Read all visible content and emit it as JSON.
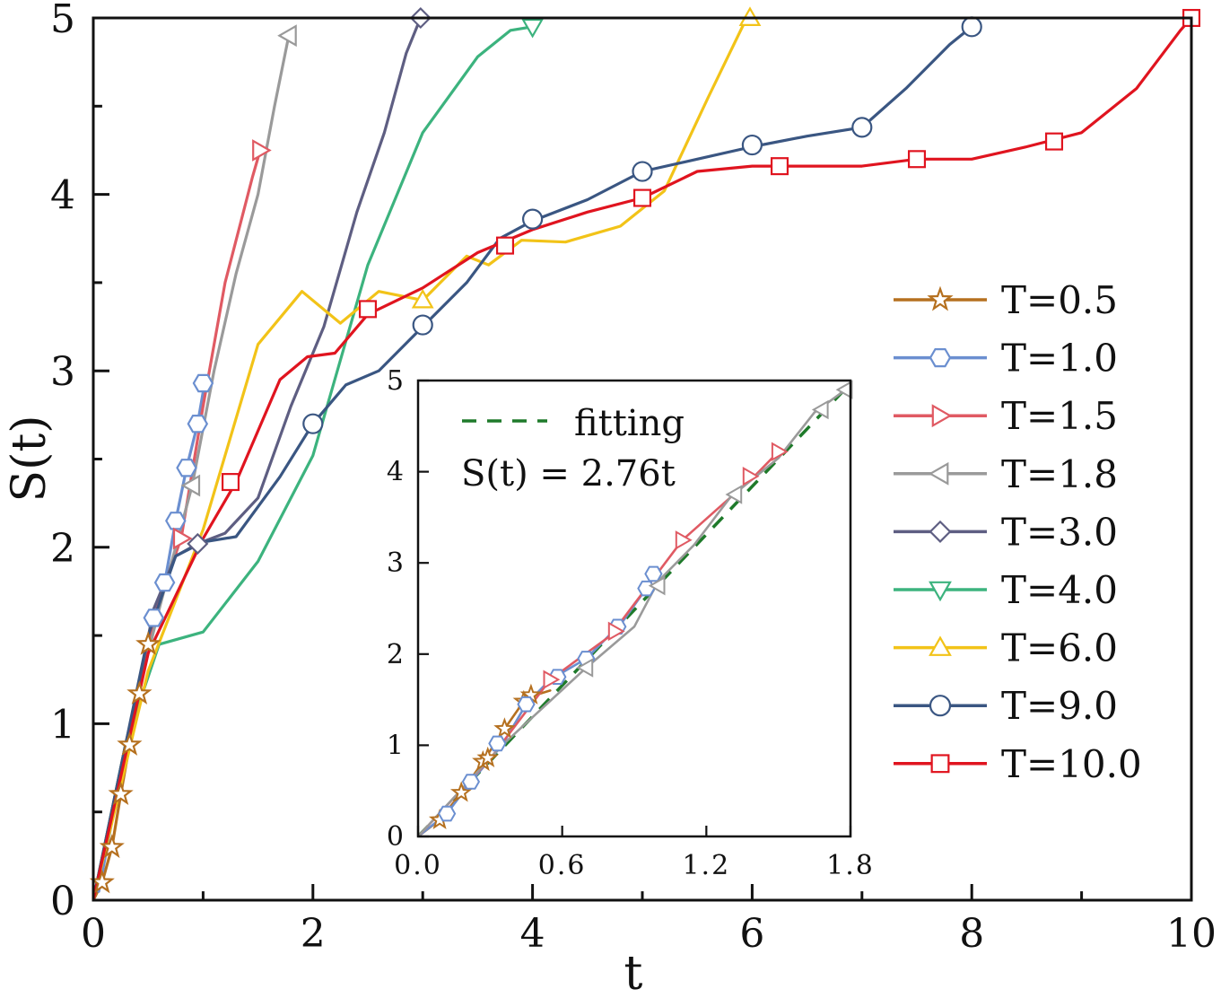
{
  "chart_data": [
    {
      "type": "line",
      "role": "main",
      "title": "",
      "xlabel": "t",
      "ylabel": "S(t)",
      "xlim": [
        0,
        10
      ],
      "ylim": [
        0,
        5
      ],
      "xticks": [
        0,
        2,
        4,
        6,
        8,
        10
      ],
      "yticks": [
        0,
        1,
        2,
        3,
        4,
        5
      ],
      "xtick_labels": [
        "0",
        "2",
        "4",
        "6",
        "8",
        "10"
      ],
      "ytick_labels": [
        "0",
        "1",
        "2",
        "3",
        "4",
        "5"
      ],
      "grid": false,
      "legend_position": "right",
      "series": [
        {
          "name": "T=0.5",
          "color": "#b5701f",
          "marker": "star",
          "x": [
            0,
            0.08,
            0.17,
            0.25,
            0.33,
            0.42,
            0.5,
            0.55
          ],
          "y": [
            0,
            0.1,
            0.3,
            0.6,
            0.88,
            1.17,
            1.45,
            1.55
          ],
          "marker_x": [
            0.08,
            0.17,
            0.25,
            0.33,
            0.42,
            0.5
          ],
          "marker_y": [
            0.1,
            0.3,
            0.6,
            0.88,
            1.17,
            1.45
          ]
        },
        {
          "name": "T=1.0",
          "color": "#6b8fd0",
          "marker": "hexagon",
          "x": [
            0.05,
            0.2,
            0.4,
            0.55,
            0.65,
            0.75,
            0.85,
            0.95,
            1.02
          ],
          "y": [
            0.05,
            0.55,
            1.15,
            1.6,
            1.8,
            2.15,
            2.45,
            2.7,
            2.95
          ],
          "marker_x": [
            0.55,
            0.65,
            0.75,
            0.85,
            0.95,
            1.0
          ],
          "marker_y": [
            1.6,
            1.8,
            2.15,
            2.45,
            2.7,
            2.93
          ]
        },
        {
          "name": "T=1.5",
          "color": "#e05a63",
          "marker": "triangle-right",
          "x": [
            0,
            0.3,
            0.6,
            0.8,
            1.0,
            1.2,
            1.45,
            1.52
          ],
          "y": [
            0,
            0.9,
            1.7,
            2.05,
            2.8,
            3.5,
            4.1,
            4.25
          ],
          "marker_x": [
            0.8,
            1.52
          ],
          "marker_y": [
            2.05,
            4.25
          ]
        },
        {
          "name": "T=1.8",
          "color": "#9a9a9a",
          "marker": "triangle-left",
          "x": [
            0,
            0.3,
            0.6,
            0.9,
            1.1,
            1.3,
            1.5,
            1.65,
            1.78
          ],
          "y": [
            0,
            0.9,
            1.65,
            2.35,
            3.0,
            3.55,
            4.0,
            4.5,
            4.9
          ],
          "marker_x": [
            0.9,
            1.78
          ],
          "marker_y": [
            2.35,
            4.9
          ]
        },
        {
          "name": "T=3.0",
          "color": "#5e5e82",
          "marker": "diamond",
          "x": [
            0,
            0.3,
            0.55,
            0.75,
            0.95,
            1.2,
            1.5,
            1.8,
            2.1,
            2.4,
            2.65,
            2.85,
            2.98
          ],
          "y": [
            0,
            0.85,
            1.65,
            1.95,
            2.02,
            2.08,
            2.28,
            2.8,
            3.25,
            3.9,
            4.35,
            4.8,
            5.0
          ],
          "marker_x": [
            0.95,
            2.98
          ],
          "marker_y": [
            2.02,
            5.0
          ]
        },
        {
          "name": "T=4.0",
          "color": "#3cb37e",
          "marker": "triangle-down",
          "x": [
            0,
            0.3,
            0.6,
            1.0,
            1.5,
            2.0,
            2.5,
            3.0,
            3.5,
            3.8,
            4.0
          ],
          "y": [
            0,
            0.9,
            1.45,
            1.52,
            1.92,
            2.52,
            3.6,
            4.35,
            4.78,
            4.93,
            4.95
          ],
          "marker_x": [
            4.0
          ],
          "marker_y": [
            4.95
          ]
        },
        {
          "name": "T=6.0",
          "color": "#f2c318",
          "marker": "triangle-up",
          "x": [
            0,
            0.5,
            1.0,
            1.5,
            1.9,
            2.25,
            2.6,
            3.0,
            3.4,
            3.6,
            3.9,
            4.3,
            4.8,
            5.2,
            5.6,
            5.95
          ],
          "y": [
            0,
            1.3,
            2.1,
            3.15,
            3.45,
            3.27,
            3.45,
            3.4,
            3.65,
            3.6,
            3.74,
            3.73,
            3.82,
            4.02,
            4.55,
            5.0
          ],
          "marker_x": [
            3.0,
            5.98
          ],
          "marker_y": [
            3.4,
            5.0
          ]
        },
        {
          "name": "T=9.0",
          "color": "#3a5682",
          "marker": "circle",
          "x": [
            0,
            0.5,
            0.75,
            1.0,
            1.3,
            1.7,
            2.0,
            2.3,
            2.6,
            3.0,
            3.4,
            3.7,
            4.0,
            4.5,
            5.0,
            5.5,
            6.0,
            6.5,
            7.0,
            7.4,
            7.8,
            8.0
          ],
          "y": [
            0,
            1.5,
            1.95,
            2.03,
            2.06,
            2.4,
            2.7,
            2.92,
            3.0,
            3.25,
            3.5,
            3.75,
            3.85,
            3.97,
            4.13,
            4.2,
            4.27,
            4.33,
            4.38,
            4.6,
            4.85,
            4.95
          ],
          "marker_x": [
            2.0,
            3.0,
            4.0,
            5.0,
            6.0,
            7.0,
            8.0
          ],
          "marker_y": [
            2.7,
            3.26,
            3.86,
            4.13,
            4.28,
            4.38,
            4.95
          ]
        },
        {
          "name": "T=10.0",
          "color": "#e0141f",
          "marker": "square",
          "x": [
            0,
            0.5,
            1.0,
            1.3,
            1.7,
            1.95,
            2.2,
            2.5,
            3.0,
            3.5,
            4.0,
            4.5,
            5.0,
            5.5,
            6.0,
            6.5,
            7.0,
            7.5,
            8.0,
            8.5,
            9.0,
            9.5,
            9.9,
            10.0
          ],
          "y": [
            0,
            1.4,
            2.05,
            2.37,
            2.95,
            3.08,
            3.1,
            3.32,
            3.47,
            3.67,
            3.8,
            3.9,
            3.98,
            4.13,
            4.16,
            4.16,
            4.16,
            4.2,
            4.2,
            4.27,
            4.35,
            4.6,
            4.93,
            5.0
          ],
          "marker_x": [
            1.25,
            2.5,
            3.75,
            5.0,
            6.25,
            7.5,
            8.75,
            10.0
          ],
          "marker_y": [
            2.37,
            3.35,
            3.71,
            3.98,
            4.16,
            4.2,
            4.3,
            5.0
          ]
        }
      ]
    },
    {
      "type": "line",
      "role": "inset",
      "title": "",
      "xlabel": "",
      "ylabel": "",
      "xlim": [
        0,
        1.8
      ],
      "ylim": [
        0,
        5
      ],
      "xticks": [
        0,
        0.6,
        1.2,
        1.8
      ],
      "yticks": [
        0,
        1,
        2,
        3,
        4,
        5
      ],
      "xtick_labels": [
        "0.0",
        "0.6",
        "1.2",
        "1.8"
      ],
      "ytick_labels": [
        "0",
        "1",
        "2",
        "3",
        "4",
        "5"
      ],
      "grid": false,
      "legend_position": "top-left",
      "fitting_label": "fitting",
      "fitting_equation": "S(t) = 2.76t",
      "fitting_slope": 2.76,
      "fitting_color": "#1e7a2a",
      "series": [
        {
          "name": "T=0.5",
          "color": "#b5701f",
          "marker": "star",
          "x": [
            0,
            0.09,
            0.18,
            0.27,
            0.36,
            0.45,
            0.55
          ],
          "y": [
            0,
            0.18,
            0.48,
            0.82,
            1.18,
            1.52,
            1.6
          ],
          "marker_x": [
            0.09,
            0.18,
            0.27,
            0.29,
            0.36,
            0.44,
            0.47
          ],
          "marker_y": [
            0.18,
            0.48,
            0.82,
            0.86,
            1.18,
            1.48,
            1.55
          ]
        },
        {
          "name": "T=1.0",
          "color": "#6b8fd0",
          "marker": "hexagon",
          "x": [
            0,
            0.12,
            0.22,
            0.35,
            0.45,
            0.55,
            0.7,
            0.85,
            0.95,
            1.0
          ],
          "y": [
            0,
            0.25,
            0.6,
            1.0,
            1.45,
            1.72,
            1.95,
            2.35,
            2.72,
            2.92
          ],
          "marker_x": [
            0.12,
            0.22,
            0.33,
            0.45,
            0.58,
            0.7,
            0.83,
            0.95,
            0.98
          ],
          "marker_y": [
            0.25,
            0.6,
            1.02,
            1.45,
            1.75,
            1.95,
            2.3,
            2.72,
            2.88
          ]
        },
        {
          "name": "T=1.5",
          "color": "#e05a63",
          "marker": "triangle-right",
          "x": [
            0,
            0.3,
            0.55,
            0.8,
            1.0,
            1.1,
            1.25,
            1.4,
            1.5
          ],
          "y": [
            0,
            0.85,
            1.72,
            2.2,
            2.9,
            3.25,
            3.6,
            3.95,
            4.22
          ],
          "marker_x": [
            0.55,
            0.82,
            1.1,
            1.38,
            1.5
          ],
          "marker_y": [
            1.72,
            2.25,
            3.25,
            3.95,
            4.22
          ]
        },
        {
          "name": "T=1.8",
          "color": "#9a9a9a",
          "marker": "triangle-left",
          "x": [
            0,
            0.35,
            0.7,
            0.9,
            1.0,
            1.15,
            1.3,
            1.5,
            1.65,
            1.78
          ],
          "y": [
            0,
            1.0,
            1.85,
            2.3,
            2.8,
            3.2,
            3.72,
            4.15,
            4.65,
            4.9
          ],
          "marker_x": [
            0.7,
            1.0,
            1.32,
            1.68,
            1.78
          ],
          "marker_y": [
            1.85,
            2.75,
            3.75,
            4.68,
            4.9
          ]
        }
      ]
    }
  ]
}
